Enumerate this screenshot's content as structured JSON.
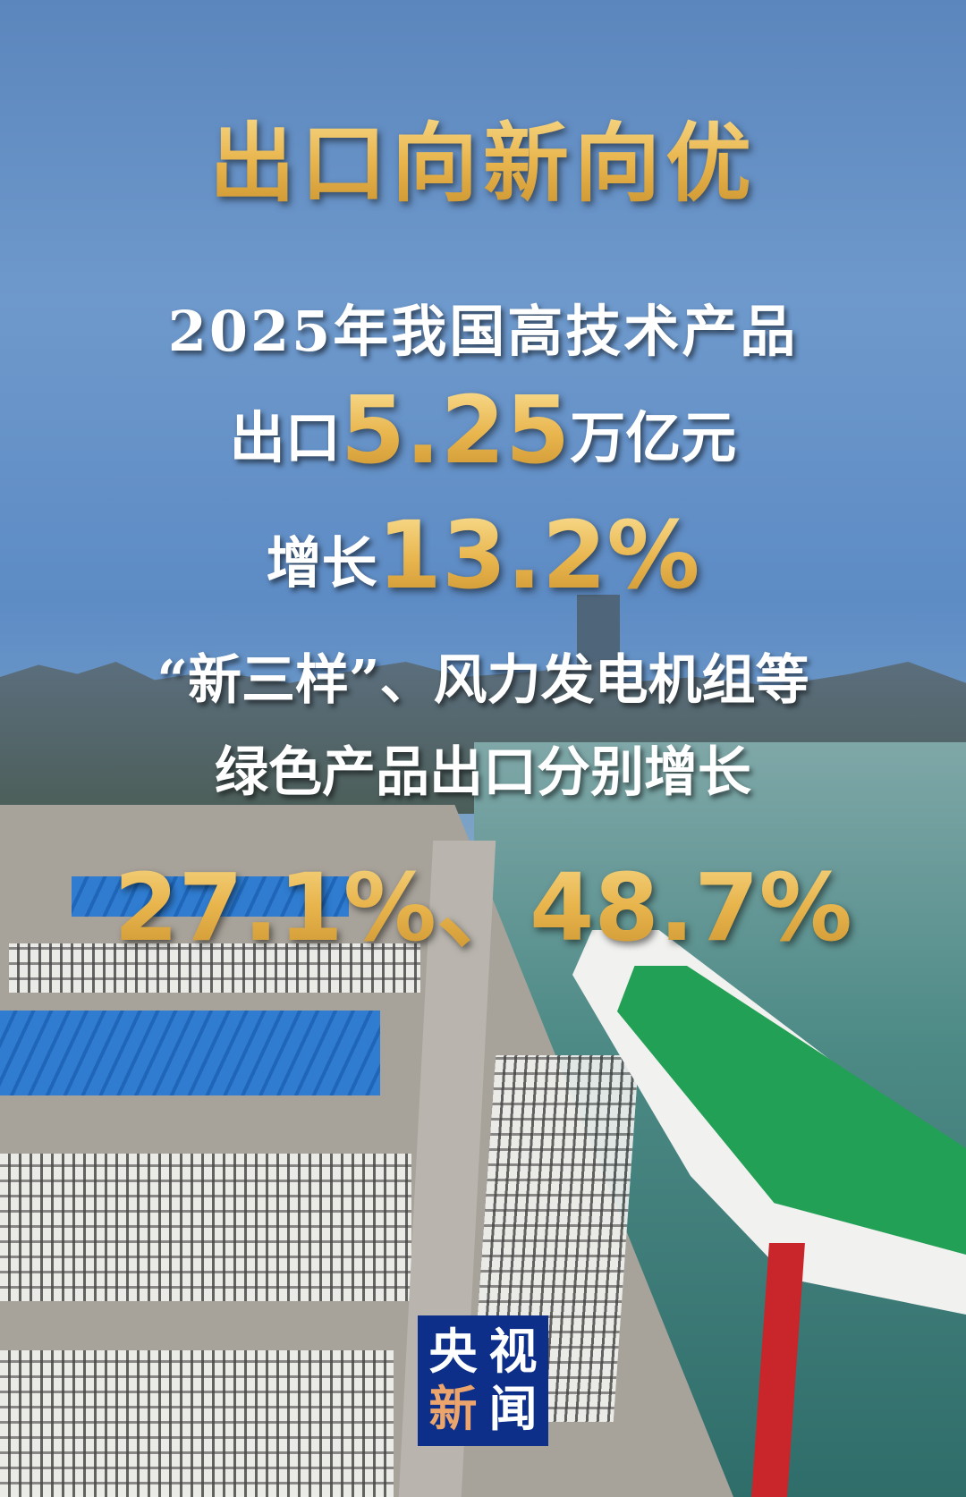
{
  "title": "出口向新向优",
  "line1": "2025年我国高技术产品",
  "line2": {
    "prefix": "出口",
    "value": "5.25",
    "suffix": "万亿元"
  },
  "line3": {
    "prefix": "增长",
    "value": "13.2%"
  },
  "line4": "“新三样”、风力发电机组等",
  "line5": "绿色产品出口分别增长",
  "line6": "27.1%、48.7%",
  "logo": {
    "chars": [
      "央",
      "视",
      "新",
      "闻"
    ],
    "bg_color": "#0d2f8a",
    "accent_color": "#eaa46c"
  },
  "colors": {
    "gold": "#f2c85e",
    "sky": "#5b86bd"
  }
}
